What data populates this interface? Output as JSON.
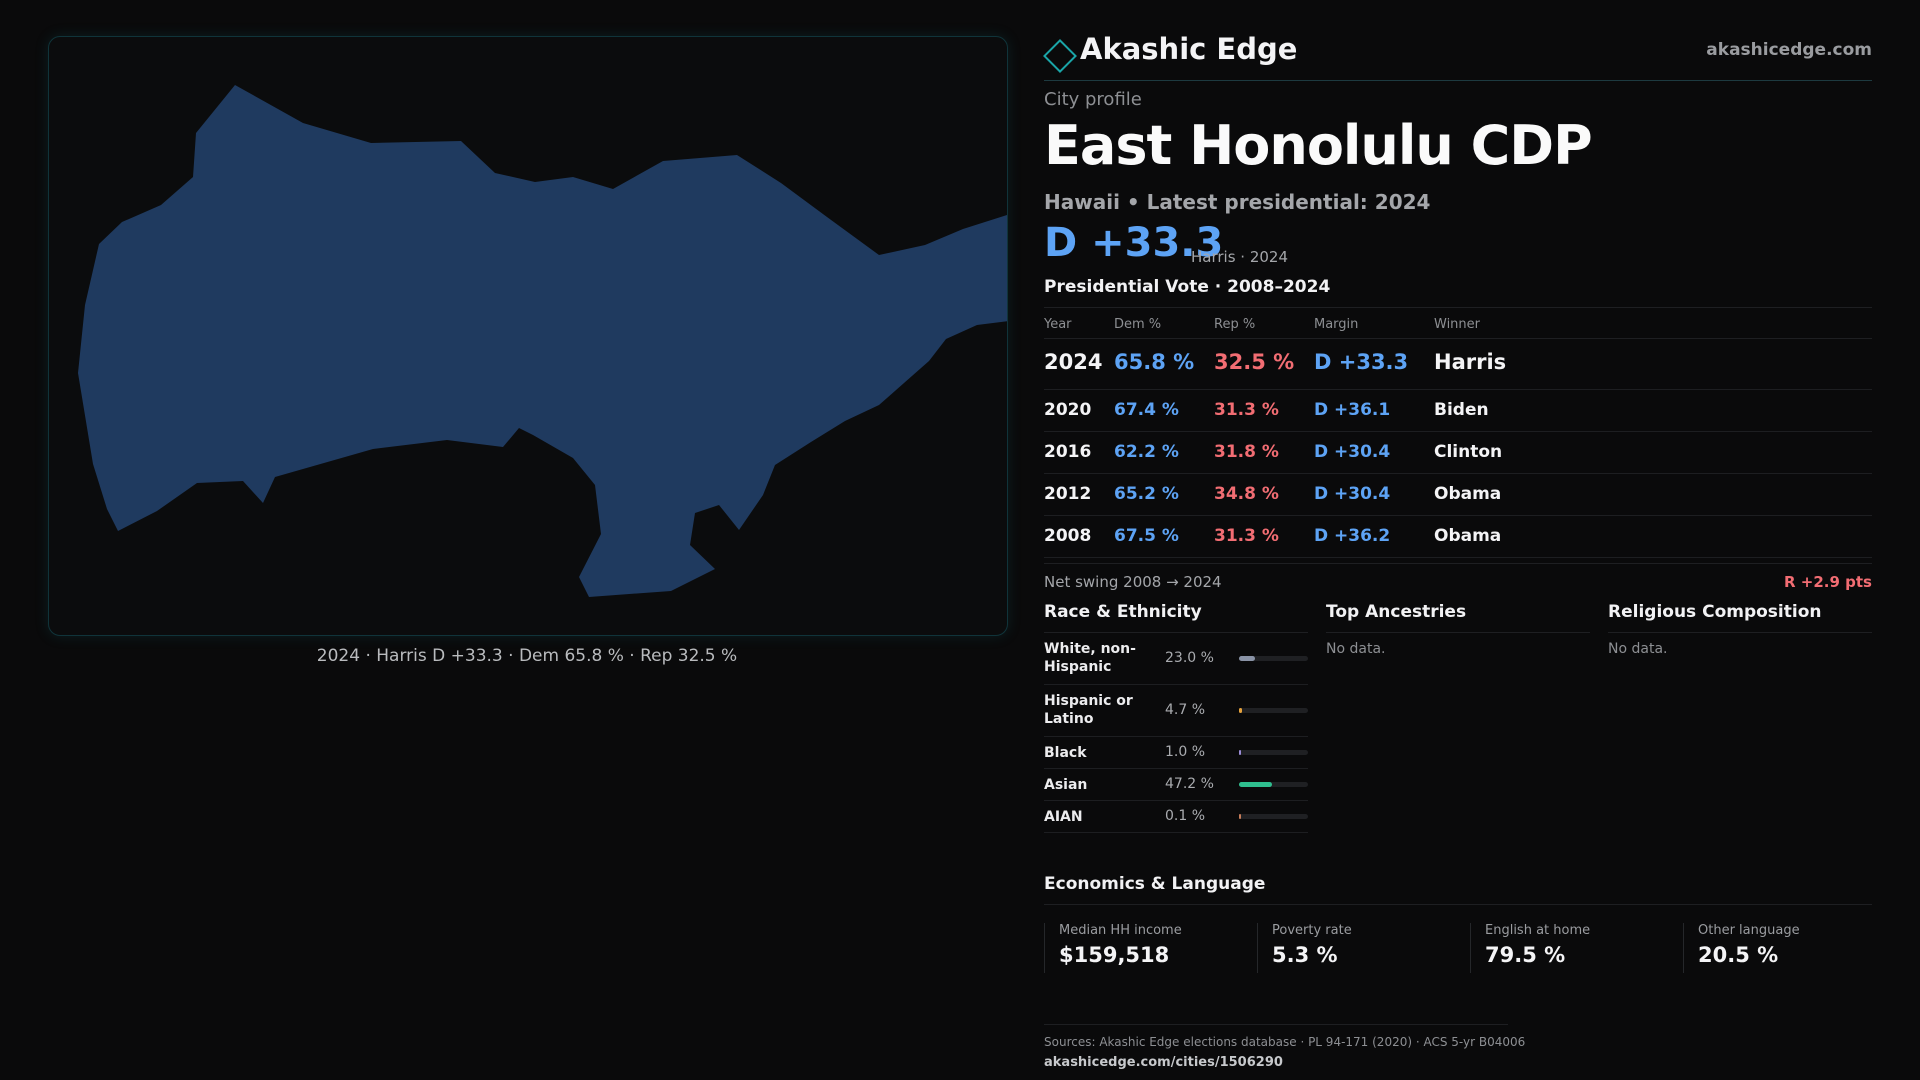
{
  "brand": {
    "name": "Akashic Edge",
    "url": "akashicedge.com"
  },
  "profile": {
    "eyebrow": "City profile",
    "title": "East Honolulu CDP",
    "subtitle": "Hawaii • Latest presidential: 2024",
    "headline_margin": "D +33.3",
    "headline_note": "Harris · 2024"
  },
  "map": {
    "caption": "2024 · Harris D +33.3 · Dem 65.8 % · Rep 32.5 %",
    "fill_color": "#1f3a5f"
  },
  "vote_table": {
    "title": "Presidential Vote · 2008–2024",
    "headers": [
      "Year",
      "Dem %",
      "Rep %",
      "Margin",
      "Winner"
    ],
    "rows": [
      {
        "year": "2024",
        "dem": "65.8 %",
        "rep": "32.5 %",
        "margin": "D +33.3",
        "winner": "Harris"
      },
      {
        "year": "2020",
        "dem": "67.4 %",
        "rep": "31.3 %",
        "margin": "D +36.1",
        "winner": "Biden"
      },
      {
        "year": "2016",
        "dem": "62.2 %",
        "rep": "31.8 %",
        "margin": "D +30.4",
        "winner": "Clinton"
      },
      {
        "year": "2012",
        "dem": "65.2 %",
        "rep": "34.8 %",
        "margin": "D +30.4",
        "winner": "Obama"
      },
      {
        "year": "2008",
        "dem": "67.5 %",
        "rep": "31.3 %",
        "margin": "D +36.2",
        "winner": "Obama"
      }
    ]
  },
  "swing": {
    "label": "Net swing 2008 → 2024",
    "value": "R +2.9 pts"
  },
  "race": {
    "title": "Race & Ethnicity",
    "items": [
      {
        "label": "White, non-Hispanic",
        "pct": "23.0 %",
        "fraction": 0.23,
        "color": "#8a93a6"
      },
      {
        "label": "Hispanic or Latino",
        "pct": "4.7 %",
        "fraction": 0.047,
        "color": "#e6a23c"
      },
      {
        "label": "Black",
        "pct": "1.0 %",
        "fraction": 0.01,
        "color": "#9b8cd6"
      },
      {
        "label": "Asian",
        "pct": "47.2 %",
        "fraction": 0.472,
        "color": "#2fbf8f"
      },
      {
        "label": "AIAN",
        "pct": "0.1 %",
        "fraction": 0.001,
        "color": "#c77d5a"
      }
    ]
  },
  "ancestries": {
    "title": "Top Ancestries",
    "empty": "No data."
  },
  "religion": {
    "title": "Religious Composition",
    "empty": "No data."
  },
  "economics": {
    "title": "Economics & Language",
    "cards": [
      {
        "label": "Median HH income",
        "value": "$159,518"
      },
      {
        "label": "Poverty rate",
        "value": "5.3 %"
      },
      {
        "label": "English at home",
        "value": "79.5 %"
      },
      {
        "label": "Other language",
        "value": "20.5 %"
      }
    ]
  },
  "footer": {
    "sources": "Sources: Akashic Edge elections database · PL 94-171 (2020) · ACS 5-yr B04006",
    "url": "akashicedge.com/cities/1506290"
  }
}
